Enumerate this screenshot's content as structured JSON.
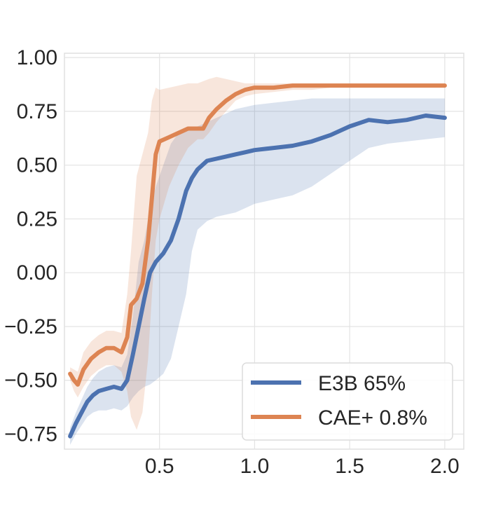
{
  "chart_data": {
    "type": "line",
    "title": "",
    "xlabel": "",
    "ylabel": "",
    "xlim": [
      0,
      2.1
    ],
    "ylim": [
      -0.82,
      1.02
    ],
    "grid": true,
    "legend_position": "lower-right",
    "xticks": [
      0.5,
      1.0,
      1.5,
      2.0
    ],
    "xtick_labels": [
      "0.5",
      "1.0",
      "1.5",
      "2.0"
    ],
    "yticks": [
      -0.75,
      -0.5,
      -0.25,
      0.0,
      0.25,
      0.5,
      0.75,
      1.0
    ],
    "ytick_labels": [
      "−0.75",
      "−0.50",
      "−0.25",
      "0.00",
      "0.25",
      "0.50",
      "0.75",
      "1.00"
    ],
    "series": [
      {
        "name": "E3B 65%",
        "color": "#4c72b0",
        "x": [
          0.03,
          0.06,
          0.09,
          0.12,
          0.15,
          0.18,
          0.22,
          0.26,
          0.3,
          0.33,
          0.36,
          0.39,
          0.42,
          0.45,
          0.48,
          0.52,
          0.56,
          0.6,
          0.64,
          0.67,
          0.7,
          0.75,
          0.8,
          0.85,
          0.9,
          0.95,
          1.0,
          1.1,
          1.2,
          1.3,
          1.4,
          1.5,
          1.6,
          1.7,
          1.8,
          1.9,
          2.0
        ],
        "y": [
          -0.76,
          -0.7,
          -0.65,
          -0.6,
          -0.57,
          -0.55,
          -0.54,
          -0.53,
          -0.54,
          -0.5,
          -0.38,
          -0.25,
          -0.12,
          0.0,
          0.05,
          0.09,
          0.15,
          0.25,
          0.38,
          0.44,
          0.48,
          0.52,
          0.53,
          0.54,
          0.55,
          0.56,
          0.57,
          0.58,
          0.59,
          0.61,
          0.64,
          0.68,
          0.71,
          0.7,
          0.71,
          0.73,
          0.72
        ],
        "lower": [
          -0.8,
          -0.75,
          -0.71,
          -0.67,
          -0.65,
          -0.64,
          -0.64,
          -0.63,
          -0.64,
          -0.62,
          -0.58,
          -0.55,
          -0.53,
          -0.52,
          -0.5,
          -0.47,
          -0.4,
          -0.25,
          -0.1,
          0.1,
          0.2,
          0.24,
          0.26,
          0.27,
          0.28,
          0.3,
          0.32,
          0.34,
          0.36,
          0.4,
          0.46,
          0.52,
          0.58,
          0.6,
          0.61,
          0.62,
          0.63
        ],
        "upper": [
          -0.72,
          -0.65,
          -0.59,
          -0.53,
          -0.49,
          -0.46,
          -0.44,
          -0.43,
          -0.44,
          -0.38,
          -0.2,
          0.05,
          0.15,
          0.3,
          0.4,
          0.5,
          0.6,
          0.65,
          0.66,
          0.67,
          0.68,
          0.7,
          0.72,
          0.74,
          0.76,
          0.77,
          0.78,
          0.79,
          0.8,
          0.81,
          0.81,
          0.81,
          0.81,
          0.81,
          0.81,
          0.81,
          0.81
        ]
      },
      {
        "name": "CAE+ 0.8%",
        "color": "#dd8452",
        "x": [
          0.03,
          0.05,
          0.07,
          0.1,
          0.14,
          0.18,
          0.22,
          0.26,
          0.3,
          0.33,
          0.35,
          0.38,
          0.41,
          0.44,
          0.46,
          0.48,
          0.5,
          0.55,
          0.6,
          0.65,
          0.7,
          0.73,
          0.76,
          0.8,
          0.85,
          0.9,
          0.95,
          1.0,
          1.1,
          1.2,
          1.3,
          1.4,
          1.5,
          1.6,
          1.7,
          1.8,
          1.9,
          2.0
        ],
        "y": [
          -0.47,
          -0.5,
          -0.52,
          -0.45,
          -0.4,
          -0.37,
          -0.35,
          -0.35,
          -0.37,
          -0.3,
          -0.15,
          -0.12,
          -0.05,
          0.15,
          0.35,
          0.55,
          0.61,
          0.63,
          0.65,
          0.67,
          0.67,
          0.67,
          0.72,
          0.76,
          0.8,
          0.83,
          0.85,
          0.86,
          0.86,
          0.87,
          0.87,
          0.87,
          0.87,
          0.87,
          0.87,
          0.87,
          0.87,
          0.87
        ],
        "lower": [
          -0.5,
          -0.55,
          -0.58,
          -0.53,
          -0.48,
          -0.45,
          -0.43,
          -0.43,
          -0.46,
          -0.55,
          -0.67,
          -0.73,
          -0.65,
          -0.4,
          -0.1,
          0.15,
          0.25,
          0.4,
          0.5,
          0.58,
          0.62,
          0.62,
          0.65,
          0.7,
          0.75,
          0.8,
          0.82,
          0.83,
          0.84,
          0.85,
          0.85,
          0.86,
          0.86,
          0.86,
          0.86,
          0.86,
          0.86,
          0.86
        ],
        "upper": [
          -0.44,
          -0.45,
          -0.46,
          -0.37,
          -0.32,
          -0.29,
          -0.27,
          -0.27,
          -0.28,
          -0.1,
          0.1,
          0.45,
          0.55,
          0.65,
          0.8,
          0.86,
          0.85,
          0.86,
          0.87,
          0.88,
          0.88,
          0.89,
          0.9,
          0.91,
          0.9,
          0.89,
          0.88,
          0.88,
          0.88,
          0.88,
          0.88,
          0.88,
          0.88,
          0.88,
          0.88,
          0.88,
          0.88,
          0.88
        ]
      }
    ]
  }
}
